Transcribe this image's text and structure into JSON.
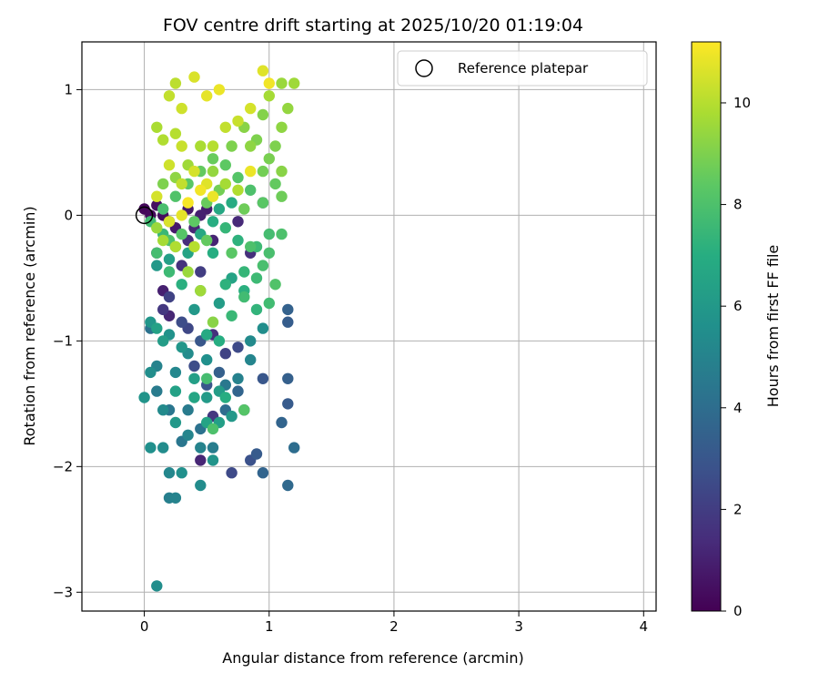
{
  "chart_data": {
    "type": "scatter",
    "title": "FOV centre drift starting at 2025/10/20 01:19:04",
    "xlabel": "Angular distance from reference (arcmin)",
    "ylabel": "Rotation from reference (arcmin)",
    "xlim": [
      -0.5,
      4.1
    ],
    "ylim": [
      -3.15,
      1.38
    ],
    "xticks": [
      0,
      1,
      2,
      3,
      4
    ],
    "xtick_labels": [
      "0",
      "1",
      "2",
      "3",
      "4"
    ],
    "yticks": [
      -3,
      -2,
      -1,
      0,
      1
    ],
    "ytick_labels": [
      "−3",
      "−2",
      "−1",
      "0",
      "1"
    ],
    "grid": true,
    "colormap": "viridis",
    "colorbar": {
      "label": "Hours from first FF file",
      "range": [
        0,
        11.2
      ],
      "ticks": [
        0,
        2,
        4,
        6,
        8,
        10
      ],
      "tick_labels": [
        "0",
        "2",
        "4",
        "6",
        "8",
        "10"
      ]
    },
    "legend": {
      "position": "top-right",
      "entries": [
        {
          "label": "Reference platepar",
          "marker": "open-circle",
          "color": "#000000"
        }
      ]
    },
    "reference_point": {
      "x": 0.0,
      "y": 0.0
    },
    "series": [
      {
        "color_by": "hours",
        "points": [
          [
            0.0,
            0.05,
            0.2
          ],
          [
            0.05,
            0.0,
            0.3
          ],
          [
            0.1,
            0.08,
            0.5
          ],
          [
            0.2,
            -0.05,
            0.6
          ],
          [
            0.35,
            0.05,
            0.8
          ],
          [
            0.45,
            0.0,
            1.0
          ],
          [
            0.4,
            -0.1,
            1.2
          ],
          [
            0.5,
            0.05,
            0.9
          ],
          [
            0.55,
            -0.2,
            1.1
          ],
          [
            0.75,
            -0.05,
            1.3
          ],
          [
            0.85,
            -0.3,
            1.5
          ],
          [
            0.95,
            0.1,
            1.7
          ],
          [
            0.1,
            -0.3,
            0.7
          ],
          [
            0.15,
            -0.6,
            1.0
          ],
          [
            0.2,
            -0.8,
            1.2
          ],
          [
            0.3,
            -0.4,
            1.6
          ],
          [
            0.45,
            -0.45,
            2.0
          ],
          [
            0.55,
            -0.95,
            1.5
          ],
          [
            0.65,
            -1.1,
            2.2
          ],
          [
            0.75,
            -1.05,
            2.5
          ],
          [
            0.8,
            -1.55,
            2.8
          ],
          [
            0.95,
            -1.3,
            3.0
          ],
          [
            1.15,
            -1.3,
            3.4
          ],
          [
            1.15,
            -1.5,
            3.2
          ],
          [
            1.1,
            -1.65,
            3.6
          ],
          [
            1.15,
            -0.85,
            3.3
          ],
          [
            1.15,
            -0.75,
            3.5
          ],
          [
            1.2,
            -1.85,
            4.0
          ],
          [
            1.15,
            -2.15,
            3.8
          ],
          [
            0.95,
            -2.05,
            3.6
          ],
          [
            0.9,
            -1.9,
            3.2
          ],
          [
            0.85,
            -1.95,
            2.8
          ],
          [
            0.7,
            -2.05,
            2.5
          ],
          [
            0.45,
            -1.95,
            1.2
          ],
          [
            0.55,
            -1.6,
            1.8
          ],
          [
            0.35,
            -0.9,
            2.4
          ],
          [
            0.4,
            -1.2,
            2.6
          ],
          [
            0.5,
            -1.35,
            3.0
          ],
          [
            0.6,
            -1.25,
            3.4
          ],
          [
            0.75,
            -1.4,
            3.6
          ],
          [
            0.65,
            -1.55,
            4.0
          ],
          [
            0.45,
            -1.7,
            4.2
          ],
          [
            0.3,
            -1.8,
            4.4
          ],
          [
            0.2,
            -2.25,
            4.8
          ],
          [
            0.25,
            -2.25,
            5.0
          ],
          [
            0.2,
            -2.05,
            5.2
          ],
          [
            0.15,
            -1.85,
            5.4
          ],
          [
            0.05,
            -1.85,
            5.6
          ],
          [
            0.0,
            -1.45,
            5.8
          ],
          [
            0.1,
            -1.4,
            4.6
          ],
          [
            0.2,
            -1.55,
            4.4
          ],
          [
            0.35,
            -1.55,
            4.6
          ],
          [
            0.45,
            -1.85,
            5.0
          ],
          [
            0.3,
            -2.05,
            5.6
          ],
          [
            0.45,
            -2.15,
            5.4
          ],
          [
            0.55,
            -1.95,
            5.8
          ],
          [
            0.25,
            -1.25,
            5.2
          ],
          [
            0.35,
            -1.1,
            5.4
          ],
          [
            0.5,
            -1.15,
            5.6
          ],
          [
            0.6,
            -1.4,
            6.2
          ],
          [
            0.7,
            -1.6,
            6.0
          ],
          [
            0.6,
            -1.65,
            6.3
          ],
          [
            0.5,
            -1.45,
            6.1
          ],
          [
            0.4,
            -1.45,
            6.6
          ],
          [
            0.15,
            -1.0,
            6.2
          ],
          [
            0.1,
            -0.9,
            6.4
          ],
          [
            0.05,
            -0.85,
            5.9
          ],
          [
            0.05,
            -0.9,
            4.2
          ],
          [
            0.1,
            -0.4,
            6.0
          ],
          [
            0.2,
            -0.35,
            6.3
          ],
          [
            0.35,
            -0.3,
            6.5
          ],
          [
            0.45,
            -0.15,
            6.7
          ],
          [
            0.55,
            -0.3,
            7.0
          ],
          [
            0.65,
            -0.55,
            7.2
          ],
          [
            0.8,
            -0.45,
            7.4
          ],
          [
            0.9,
            -0.25,
            7.6
          ],
          [
            1.0,
            -0.15,
            7.8
          ],
          [
            1.1,
            -0.15,
            8.0
          ],
          [
            0.95,
            -0.4,
            7.9
          ],
          [
            0.8,
            -0.65,
            7.7
          ],
          [
            0.7,
            -0.8,
            7.5
          ],
          [
            0.9,
            -0.75,
            7.3
          ],
          [
            0.6,
            -1.0,
            7.0
          ],
          [
            0.5,
            -0.95,
            6.8
          ],
          [
            0.45,
            -0.6,
            6.9
          ],
          [
            0.3,
            -0.55,
            7.1
          ],
          [
            0.25,
            -0.25,
            7.3
          ],
          [
            0.15,
            -0.15,
            7.5
          ],
          [
            0.05,
            -0.05,
            7.7
          ],
          [
            0.15,
            0.05,
            7.9
          ],
          [
            0.25,
            0.15,
            8.1
          ],
          [
            0.35,
            0.25,
            8.3
          ],
          [
            0.45,
            0.35,
            8.5
          ],
          [
            0.55,
            0.45,
            8.6
          ],
          [
            0.65,
            0.4,
            8.4
          ],
          [
            0.75,
            0.3,
            8.2
          ],
          [
            0.85,
            0.2,
            8.0
          ],
          [
            0.95,
            0.1,
            8.3
          ],
          [
            1.05,
            0.25,
            8.5
          ],
          [
            1.1,
            0.15,
            8.7
          ],
          [
            1.0,
            0.45,
            8.9
          ],
          [
            0.9,
            0.6,
            9.0
          ],
          [
            0.8,
            0.7,
            9.2
          ],
          [
            0.95,
            0.8,
            9.1
          ],
          [
            1.1,
            0.7,
            9.3
          ],
          [
            1.15,
            0.85,
            9.4
          ],
          [
            1.2,
            1.05,
            9.6
          ],
          [
            1.1,
            1.05,
            9.5
          ],
          [
            1.0,
            0.95,
            9.7
          ],
          [
            0.85,
            0.55,
            9.3
          ],
          [
            0.7,
            0.55,
            9.0
          ],
          [
            0.6,
            0.2,
            8.8
          ],
          [
            0.5,
            0.1,
            8.6
          ],
          [
            0.4,
            -0.05,
            8.4
          ],
          [
            0.3,
            -0.15,
            8.2
          ],
          [
            0.2,
            -0.2,
            8.0
          ],
          [
            0.1,
            -0.3,
            7.8
          ],
          [
            0.15,
            0.25,
            9.0
          ],
          [
            0.25,
            0.3,
            9.3
          ],
          [
            0.35,
            0.4,
            9.6
          ],
          [
            0.45,
            0.55,
            9.8
          ],
          [
            0.55,
            0.55,
            10.0
          ],
          [
            0.65,
            0.7,
            10.2
          ],
          [
            0.75,
            0.75,
            10.3
          ],
          [
            0.85,
            0.85,
            10.5
          ],
          [
            0.95,
            1.15,
            10.7
          ],
          [
            1.0,
            1.05,
            11.0
          ],
          [
            0.2,
            0.95,
            10.2
          ],
          [
            0.3,
            0.85,
            10.4
          ],
          [
            0.4,
            1.1,
            10.6
          ],
          [
            0.5,
            0.95,
            10.8
          ],
          [
            0.6,
            1.0,
            10.9
          ],
          [
            0.25,
            1.05,
            10.1
          ],
          [
            0.1,
            0.7,
            9.8
          ],
          [
            0.15,
            0.6,
            9.9
          ],
          [
            0.25,
            0.65,
            10.0
          ],
          [
            0.3,
            0.55,
            10.3
          ],
          [
            0.4,
            0.35,
            10.5
          ],
          [
            0.5,
            0.25,
            10.7
          ],
          [
            0.55,
            0.15,
            10.9
          ],
          [
            0.45,
            0.2,
            11.0
          ],
          [
            0.35,
            0.1,
            11.1
          ],
          [
            0.3,
            0.0,
            10.8
          ],
          [
            0.2,
            -0.05,
            10.6
          ],
          [
            0.1,
            0.15,
            10.5
          ],
          [
            0.2,
            0.4,
            10.4
          ],
          [
            0.3,
            0.25,
            10.2
          ],
          [
            0.4,
            -0.25,
            10.0
          ],
          [
            0.25,
            -0.25,
            9.9
          ],
          [
            0.15,
            -0.2,
            9.7
          ],
          [
            0.1,
            -0.1,
            9.5
          ],
          [
            0.85,
            0.35,
            10.9
          ],
          [
            0.35,
            -0.45,
            9.5
          ],
          [
            0.45,
            -0.6,
            9.6
          ],
          [
            0.55,
            -0.85,
            9.2
          ],
          [
            0.8,
            -1.55,
            8.2
          ],
          [
            0.55,
            -1.7,
            8.0
          ],
          [
            0.5,
            -1.3,
            7.8
          ],
          [
            0.65,
            -1.45,
            7.0
          ],
          [
            0.25,
            -1.4,
            6.4
          ],
          [
            0.4,
            -0.75,
            6.0
          ],
          [
            0.6,
            -0.7,
            6.2
          ],
          [
            0.7,
            -0.5,
            6.5
          ],
          [
            0.8,
            -0.6,
            7.1
          ],
          [
            0.9,
            -0.5,
            7.6
          ],
          [
            1.0,
            -0.3,
            7.9
          ],
          [
            0.75,
            -0.2,
            7.2
          ],
          [
            0.65,
            -0.1,
            7.4
          ],
          [
            0.55,
            -0.05,
            7.0
          ],
          [
            0.6,
            0.05,
            6.7
          ],
          [
            0.7,
            0.1,
            6.9
          ],
          [
            0.15,
            0.0,
            0.4
          ],
          [
            0.25,
            -0.1,
            0.8
          ],
          [
            0.35,
            -0.2,
            1.4
          ],
          [
            0.15,
            -0.75,
            1.8
          ],
          [
            0.2,
            -0.65,
            2.2
          ],
          [
            0.3,
            -0.85,
            2.6
          ],
          [
            0.45,
            -1.0,
            3.0
          ],
          [
            0.1,
            -1.2,
            5.0
          ],
          [
            0.05,
            -1.25,
            5.5
          ],
          [
            0.2,
            -0.95,
            5.7
          ],
          [
            0.3,
            -1.05,
            5.9
          ],
          [
            0.4,
            -1.3,
            6.3
          ],
          [
            0.5,
            -1.65,
            6.5
          ],
          [
            0.25,
            -1.65,
            6.0
          ],
          [
            0.15,
            -1.55,
            5.3
          ],
          [
            0.35,
            -1.75,
            5.1
          ],
          [
            0.55,
            -1.85,
            4.7
          ],
          [
            0.65,
            -1.35,
            4.5
          ],
          [
            0.75,
            -1.3,
            4.9
          ],
          [
            0.85,
            -1.15,
            5.1
          ],
          [
            0.85,
            -1.0,
            5.3
          ],
          [
            0.95,
            -0.9,
            5.5
          ],
          [
            1.0,
            -0.7,
            7.7
          ],
          [
            1.05,
            -0.55,
            8.1
          ],
          [
            0.95,
            0.35,
            8.8
          ],
          [
            1.05,
            0.55,
            9.0
          ],
          [
            1.1,
            0.35,
            9.2
          ],
          [
            0.1,
            -2.95,
            5.5
          ],
          [
            0.5,
            -0.2,
            8.5
          ],
          [
            0.55,
            0.35,
            9.4
          ],
          [
            0.65,
            0.25,
            9.7
          ],
          [
            0.75,
            0.2,
            9.9
          ],
          [
            0.8,
            0.05,
            8.7
          ],
          [
            0.7,
            -0.3,
            8.3
          ],
          [
            0.85,
            -0.25,
            8.0
          ],
          [
            0.2,
            -0.45,
            7.6
          ]
        ]
      }
    ]
  }
}
